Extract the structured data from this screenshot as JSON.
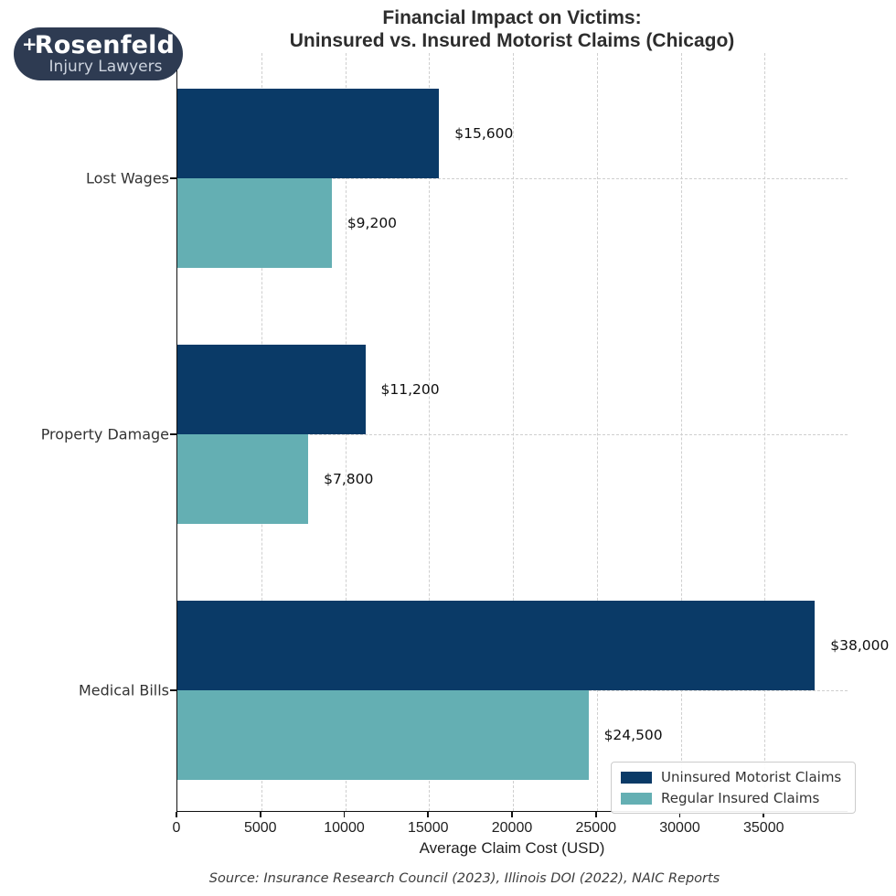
{
  "logo": {
    "plus": "+",
    "name": "Rosenfeld",
    "tagline": "Injury Lawyers",
    "bg_color": "#2e3b52"
  },
  "title": {
    "line1": "Financial Impact on Victims:",
    "line2": "Uninsured vs. Insured Motorist Claims (Chicago)"
  },
  "chart_data": {
    "type": "bar",
    "orientation": "horizontal",
    "title": "Financial Impact on Victims: Uninsured vs. Insured Motorist Claims (Chicago)",
    "categories": [
      "Lost Wages",
      "Property Damage",
      "Medical Bills"
    ],
    "series": [
      {
        "name": "Uninsured Motorist Claims",
        "color": "#0a3a67",
        "values": [
          15600,
          11200,
          38000
        ],
        "labels": [
          "$15,600",
          "$11,200",
          "$38,000"
        ]
      },
      {
        "name": "Regular Insured Claims",
        "color": "#64afb3",
        "values": [
          9200,
          7800,
          24500
        ],
        "labels": [
          "$9,200",
          "$7,800",
          "$24,500"
        ]
      }
    ],
    "xlabel": "Average Claim Cost (USD)",
    "ylabel": "",
    "xlim": [
      0,
      40000
    ],
    "xticks": [
      0,
      5000,
      10000,
      15000,
      20000,
      25000,
      30000,
      35000
    ],
    "grid": "dashed",
    "legend_position": "lower right"
  },
  "source": "Source: Insurance Research Council (2023), Illinois DOI (2022), NAIC Reports"
}
